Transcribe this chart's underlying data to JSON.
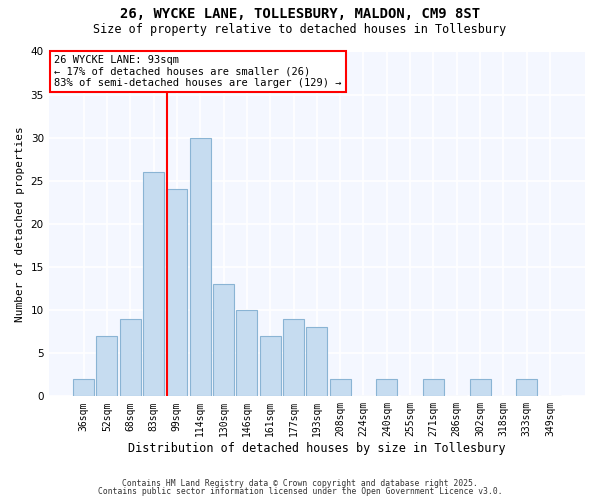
{
  "title": "26, WYCKE LANE, TOLLESBURY, MALDON, CM9 8ST",
  "subtitle": "Size of property relative to detached houses in Tollesbury",
  "xlabel": "Distribution of detached houses by size in Tollesbury",
  "ylabel": "Number of detached properties",
  "bin_labels": [
    "36sqm",
    "52sqm",
    "68sqm",
    "83sqm",
    "99sqm",
    "114sqm",
    "130sqm",
    "146sqm",
    "161sqm",
    "177sqm",
    "193sqm",
    "208sqm",
    "224sqm",
    "240sqm",
    "255sqm",
    "271sqm",
    "286sqm",
    "302sqm",
    "318sqm",
    "333sqm",
    "349sqm"
  ],
  "bar_values": [
    2,
    7,
    9,
    26,
    24,
    30,
    13,
    10,
    7,
    9,
    8,
    2,
    0,
    2,
    0,
    2,
    0,
    2,
    0,
    2,
    0
  ],
  "bar_color": "#c6dcf0",
  "bar_edge_color": "#8ab4d4",
  "vline_color": "red",
  "annotation_title": "26 WYCKE LANE: 93sqm",
  "annotation_line1": "← 17% of detached houses are smaller (26)",
  "annotation_line2": "83% of semi-detached houses are larger (129) →",
  "annotation_box_color": "white",
  "annotation_box_edge_color": "red",
  "ylim": [
    0,
    40
  ],
  "yticks": [
    0,
    5,
    10,
    15,
    20,
    25,
    30,
    35,
    40
  ],
  "footer1": "Contains HM Land Registry data © Crown copyright and database right 2025.",
  "footer2": "Contains public sector information licensed under the Open Government Licence v3.0.",
  "bg_color": "#ffffff",
  "plot_bg_color": "#f4f7ff"
}
